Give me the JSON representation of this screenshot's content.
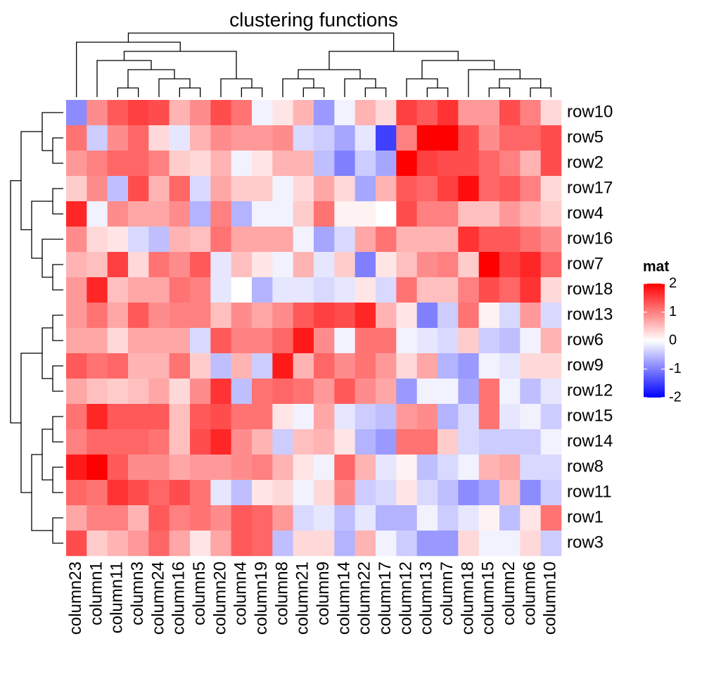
{
  "chart_data": {
    "type": "heatmap",
    "title": "clustering functions",
    "rows": [
      "row10",
      "row5",
      "row2",
      "row17",
      "row4",
      "row16",
      "row7",
      "row18",
      "row13",
      "row6",
      "row9",
      "row12",
      "row15",
      "row14",
      "row8",
      "row11",
      "row1",
      "row3"
    ],
    "columns": [
      "column23",
      "column1",
      "column11",
      "column3",
      "column24",
      "column16",
      "column5",
      "column20",
      "column4",
      "column19",
      "column8",
      "column21",
      "column9",
      "column14",
      "column22",
      "column17",
      "column12",
      "column13",
      "column7",
      "column18",
      "column15",
      "column2",
      "column6",
      "column10"
    ],
    "values": [
      [
        -0.9,
        0.9,
        1.3,
        1.5,
        1.4,
        0.6,
        0.9,
        1.4,
        1.1,
        -0.1,
        0.2,
        0.6,
        -0.8,
        -0.1,
        0.6,
        0.3,
        1.5,
        1.3,
        1.6,
        0.8,
        0.8,
        1.4,
        1.0,
        0.3
      ],
      [
        1.1,
        -0.4,
        0.9,
        1.2,
        0.3,
        -0.2,
        0.6,
        0.9,
        0.8,
        0.8,
        0.9,
        -0.3,
        -0.4,
        -0.7,
        -0.2,
        -1.5,
        1.0,
        2.0,
        2.0,
        1.4,
        0.9,
        1.2,
        1.2,
        1.4
      ],
      [
        0.8,
        1.0,
        1.2,
        1.2,
        1.0,
        0.4,
        0.3,
        0.6,
        -0.1,
        0.2,
        0.6,
        0.6,
        -0.5,
        -1.0,
        -0.4,
        -0.7,
        2.0,
        1.5,
        1.4,
        1.4,
        1.2,
        1.0,
        0.6,
        1.4
      ],
      [
        0.4,
        0.9,
        -0.5,
        1.4,
        0.6,
        1.2,
        -0.3,
        0.7,
        0.4,
        0.4,
        -0.1,
        0.3,
        0.7,
        0.3,
        -0.7,
        0.6,
        1.3,
        1.2,
        1.5,
        1.9,
        1.2,
        1.3,
        1.0,
        0.3
      ],
      [
        1.7,
        -0.1,
        0.9,
        0.7,
        0.7,
        0.9,
        -0.6,
        1.0,
        -0.6,
        -0.1,
        -0.1,
        0.4,
        1.1,
        0.1,
        0.1,
        0.0,
        1.4,
        1.0,
        1.0,
        0.5,
        0.5,
        0.8,
        0.6,
        0.4
      ],
      [
        0.9,
        0.3,
        0.2,
        -0.3,
        -0.5,
        0.6,
        0.5,
        1.1,
        0.7,
        0.7,
        0.7,
        -0.1,
        -0.7,
        -0.3,
        0.7,
        1.1,
        0.6,
        0.6,
        0.6,
        1.6,
        1.3,
        1.3,
        1.1,
        0.9
      ],
      [
        0.6,
        0.5,
        1.5,
        0.3,
        1.1,
        0.9,
        1.3,
        -0.2,
        0.5,
        0.2,
        -0.1,
        0.6,
        -0.2,
        0.4,
        -1.0,
        0.2,
        0.5,
        0.9,
        1.0,
        0.4,
        2.0,
        1.5,
        1.7,
        1.2
      ],
      [
        0.8,
        1.7,
        0.5,
        0.7,
        0.7,
        1.1,
        1.0,
        -0.2,
        0.0,
        -0.6,
        -0.2,
        -0.2,
        -0.3,
        -0.2,
        0.2,
        -0.3,
        1.1,
        0.5,
        0.5,
        1.0,
        1.4,
        1.2,
        1.6,
        0.3
      ],
      [
        0.8,
        1.1,
        0.7,
        1.3,
        0.9,
        1.0,
        1.0,
        0.5,
        0.9,
        0.7,
        0.9,
        1.3,
        1.5,
        1.4,
        1.7,
        0.6,
        0.2,
        -1.0,
        -0.4,
        1.1,
        0.1,
        -0.3,
        0.8,
        -0.3
      ],
      [
        0.7,
        0.7,
        0.3,
        0.7,
        0.7,
        0.7,
        -0.3,
        1.3,
        1.0,
        1.0,
        1.2,
        1.8,
        0.9,
        -0.1,
        1.1,
        1.1,
        -0.1,
        -0.2,
        -0.3,
        0.4,
        -0.4,
        -0.5,
        -0.1,
        0.6
      ],
      [
        1.3,
        1.1,
        1.2,
        0.6,
        0.6,
        1.1,
        0.4,
        -0.5,
        0.6,
        -0.4,
        1.8,
        0.6,
        1.2,
        0.9,
        1.1,
        0.8,
        0.3,
        0.7,
        -0.6,
        -0.8,
        -0.1,
        -0.2,
        0.3,
        0.3
      ],
      [
        0.7,
        0.5,
        0.4,
        0.5,
        0.7,
        0.3,
        0.9,
        1.6,
        -0.5,
        1.1,
        1.2,
        1.1,
        0.8,
        1.3,
        0.9,
        0.7,
        -0.8,
        -0.1,
        -0.1,
        -0.7,
        1.1,
        -0.1,
        -0.5,
        -0.2
      ],
      [
        1.1,
        1.7,
        1.3,
        1.3,
        1.3,
        0.5,
        1.3,
        1.4,
        1.1,
        1.1,
        0.2,
        -0.1,
        0.7,
        -0.2,
        -0.4,
        -0.5,
        0.8,
        0.9,
        -0.6,
        -0.3,
        1.1,
        -0.2,
        -0.1,
        -0.4
      ],
      [
        1.0,
        1.2,
        1.2,
        1.2,
        1.1,
        0.5,
        1.4,
        1.7,
        0.9,
        0.6,
        -0.4,
        0.5,
        0.6,
        0.2,
        -0.6,
        -0.8,
        1.1,
        1.1,
        0.4,
        -0.3,
        -0.4,
        -0.4,
        -0.4,
        -0.1
      ],
      [
        1.8,
        2.0,
        1.3,
        0.9,
        0.9,
        0.7,
        0.8,
        0.8,
        0.9,
        1.0,
        0.6,
        0.2,
        -0.1,
        1.2,
        0.6,
        -0.2,
        0.1,
        -0.5,
        -0.3,
        -0.1,
        0.6,
        0.7,
        -0.3,
        -0.3
      ],
      [
        1.2,
        1.1,
        1.6,
        1.4,
        1.2,
        1.4,
        1.1,
        -0.2,
        -0.5,
        0.2,
        0.3,
        -0.1,
        0.3,
        0.9,
        -0.4,
        -0.3,
        0.2,
        -0.3,
        -0.5,
        -0.9,
        -0.7,
        0.5,
        -0.9,
        -0.4
      ],
      [
        0.7,
        1.0,
        1.0,
        0.6,
        1.3,
        1.0,
        1.1,
        0.9,
        1.3,
        1.2,
        0.8,
        -0.3,
        -0.2,
        -0.5,
        -0.2,
        -0.6,
        -0.6,
        -0.1,
        -0.4,
        -0.2,
        0.1,
        -0.5,
        0.2,
        1.1
      ],
      [
        1.4,
        0.4,
        0.6,
        0.8,
        1.2,
        0.7,
        0.2,
        0.7,
        1.3,
        1.2,
        -0.5,
        0.3,
        0.3,
        -0.6,
        0.6,
        -0.1,
        -0.4,
        -0.8,
        -0.8,
        0.3,
        -0.1,
        -0.1,
        0.3,
        -0.4
      ]
    ],
    "colorscale": [
      "#0000ff",
      "#ffffff",
      "#ff0000"
    ],
    "clim": [
      -2,
      2
    ],
    "legend": {
      "title": "mat",
      "ticks": [
        2,
        1,
        0,
        -1,
        -2
      ]
    }
  }
}
